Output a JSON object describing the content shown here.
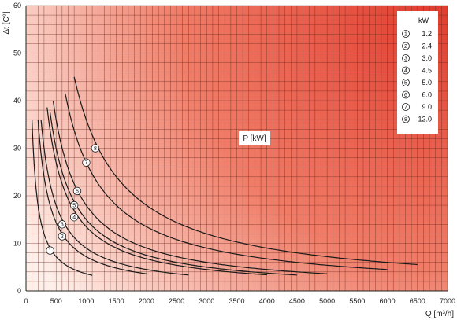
{
  "chart_data": {
    "type": "line",
    "title": "",
    "xlabel": "Q [m³/h]",
    "ylabel": "Δt [C°]",
    "xlim": [
      0,
      7000
    ],
    "ylim": [
      0,
      60
    ],
    "x_ticks": [
      0,
      500,
      1000,
      1500,
      2000,
      2500,
      3000,
      3500,
      4000,
      4500,
      5000,
      5500,
      6000,
      6500,
      7000
    ],
    "y_ticks": [
      0,
      10,
      20,
      30,
      40,
      50,
      60
    ],
    "grid": true,
    "background_gradient": {
      "low": "#fdf0ea",
      "high": "#e13a2c"
    },
    "center_label": "P [kW]",
    "legend": {
      "placement": "top-right",
      "header": "kW",
      "entries": [
        {
          "marker": "1",
          "value": "1.2"
        },
        {
          "marker": "2",
          "value": "2.4"
        },
        {
          "marker": "3",
          "value": "3.0"
        },
        {
          "marker": "4",
          "value": "4.5"
        },
        {
          "marker": "5",
          "value": "5.0"
        },
        {
          "marker": "6",
          "value": "6.0"
        },
        {
          "marker": "7",
          "value": "9.0"
        },
        {
          "marker": "8",
          "value": "12.0"
        }
      ]
    },
    "series": [
      {
        "marker": "1",
        "power_kw": 1.2,
        "x_range": [
          100,
          1100
        ],
        "label_at": [
          400,
          8.5
        ]
      },
      {
        "marker": "2",
        "power_kw": 2.4,
        "x_range": [
          200,
          2000
        ],
        "label_at": [
          600,
          11.5
        ]
      },
      {
        "marker": "3",
        "power_kw": 3.0,
        "x_range": [
          250,
          2700
        ],
        "label_at": [
          600,
          14
        ]
      },
      {
        "marker": "4",
        "power_kw": 4.5,
        "x_range": [
          350,
          4000
        ],
        "label_at": [
          800,
          15.5
        ]
      },
      {
        "marker": "5",
        "power_kw": 5.0,
        "x_range": [
          400,
          4500
        ],
        "label_at": [
          800,
          18
        ]
      },
      {
        "marker": "6",
        "power_kw": 6.0,
        "x_range": [
          450,
          5000
        ],
        "label_at": [
          850,
          21
        ]
      },
      {
        "marker": "7",
        "power_kw": 9.0,
        "x_range": [
          650,
          6000
        ],
        "label_at": [
          1000,
          27
        ]
      },
      {
        "marker": "8",
        "power_kw": 12.0,
        "x_range": [
          800,
          6500
        ],
        "label_at": [
          1150,
          30
        ]
      }
    ]
  }
}
